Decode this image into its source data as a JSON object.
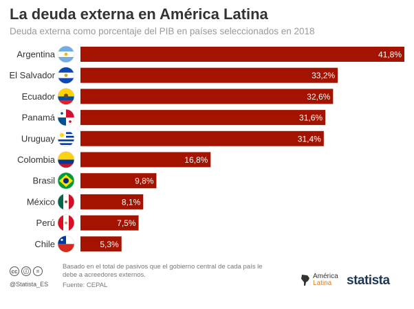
{
  "header": {
    "title": "La deuda externa en América Latina",
    "subtitle": "Deuda externa como porcentaje del PIB en países seleccionados en 2018"
  },
  "chart_data": {
    "type": "bar",
    "orientation": "horizontal",
    "categories": [
      "Argentina",
      "El Salvador",
      "Ecuador",
      "Panamá",
      "Uruguay",
      "Colombia",
      "Brasil",
      "México",
      "Perú",
      "Chile"
    ],
    "values": [
      41.8,
      33.2,
      32.6,
      31.6,
      31.4,
      16.8,
      9.8,
      8.1,
      7.5,
      5.3
    ],
    "value_labels": [
      "41,8%",
      "33,2%",
      "32,6%",
      "31,6%",
      "31,4%",
      "16,8%",
      "9,8%",
      "8,1%",
      "7,5%",
      "5,3%"
    ],
    "flag_icons": [
      "flag-argentina-icon",
      "flag-el-salvador-icon",
      "flag-ecuador-icon",
      "flag-panama-icon",
      "flag-uruguay-icon",
      "flag-colombia-icon",
      "flag-brazil-icon",
      "flag-mexico-icon",
      "flag-peru-icon",
      "flag-chile-icon"
    ],
    "title": "La deuda externa en América Latina",
    "xlabel": "",
    "ylabel": "",
    "xlim": [
      0,
      41.8
    ],
    "grid": false,
    "bar_color": "#a31300"
  },
  "footer": {
    "cc_icons": [
      "cc",
      "ⓘ",
      "="
    ],
    "handle": "@Statista_ES",
    "note": "Basado en el total de pasivos que el gobierno central de cada país le debe a acreedores externos.",
    "source": "Fuente: CEPAL",
    "partner_logo_line1": "América",
    "partner_logo_line2": "Latina",
    "brand": "statista"
  }
}
